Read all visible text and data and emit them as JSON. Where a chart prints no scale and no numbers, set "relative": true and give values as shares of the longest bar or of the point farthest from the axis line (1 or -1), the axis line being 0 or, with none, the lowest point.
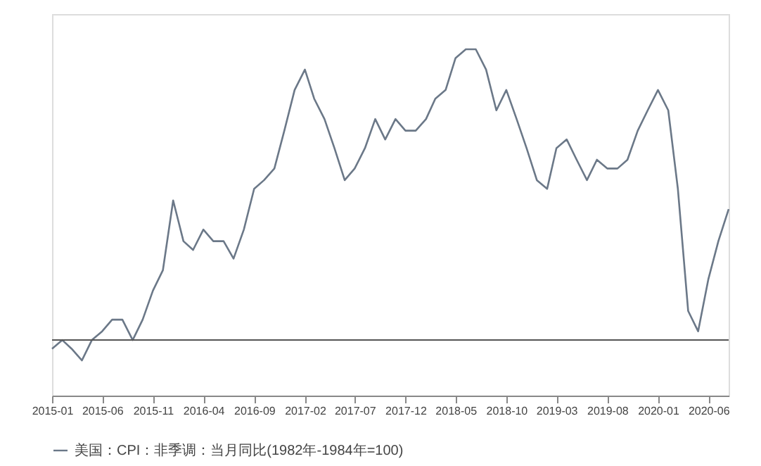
{
  "chart_data": {
    "type": "line",
    "relative": true,
    "x": [
      "2015-01",
      "2015-02",
      "2015-03",
      "2015-04",
      "2015-05",
      "2015-06",
      "2015-07",
      "2015-08",
      "2015-09",
      "2015-10",
      "2015-11",
      "2015-12",
      "2016-01",
      "2016-02",
      "2016-03",
      "2016-04",
      "2016-05",
      "2016-06",
      "2016-07",
      "2016-08",
      "2016-09",
      "2016-10",
      "2016-11",
      "2016-12",
      "2017-01",
      "2017-02",
      "2017-03",
      "2017-04",
      "2017-05",
      "2017-06",
      "2017-07",
      "2017-08",
      "2017-09",
      "2017-10",
      "2017-11",
      "2017-12",
      "2018-01",
      "2018-02",
      "2018-03",
      "2018-04",
      "2018-05",
      "2018-06",
      "2018-07",
      "2018-08",
      "2018-09",
      "2018-10",
      "2018-11",
      "2018-12",
      "2019-01",
      "2019-02",
      "2019-03",
      "2019-04",
      "2019-05",
      "2019-06",
      "2019-07",
      "2019-08",
      "2019-09",
      "2019-10",
      "2019-11",
      "2019-12",
      "2020-01",
      "2020-02",
      "2020-03",
      "2020-04",
      "2020-05",
      "2020-06",
      "2020-07",
      "2020-08"
    ],
    "xlim": [
      "2015-01",
      "2020-08"
    ],
    "xticks": [
      "2015-01",
      "2015-06",
      "2015-11",
      "2016-04",
      "2016-09",
      "2017-02",
      "2017-07",
      "2017-12",
      "2018-05",
      "2018-10",
      "2019-03",
      "2019-08",
      "2020-01",
      "2020-06"
    ],
    "series": [
      {
        "name": "美国：CPI：非季调：当月同比(1982年-1984年=100)",
        "color": "#6b7888",
        "values": [
          -0.03,
          0.0,
          -0.03,
          -0.07,
          0.0,
          0.03,
          0.07,
          0.07,
          0.0,
          0.07,
          0.17,
          0.24,
          0.48,
          0.34,
          0.31,
          0.38,
          0.34,
          0.34,
          0.28,
          0.38,
          0.52,
          0.55,
          0.59,
          0.72,
          0.86,
          0.93,
          0.83,
          0.76,
          0.66,
          0.55,
          0.59,
          0.66,
          0.76,
          0.69,
          0.76,
          0.72,
          0.72,
          0.76,
          0.83,
          0.86,
          0.97,
          1.0,
          1.0,
          0.93,
          0.79,
          0.86,
          0.76,
          0.66,
          0.55,
          0.52,
          0.66,
          0.69,
          0.62,
          0.55,
          0.62,
          0.59,
          0.59,
          0.62,
          0.72,
          0.79,
          0.86,
          0.79,
          0.52,
          0.1,
          0.03,
          0.21,
          0.34,
          0.45
        ]
      }
    ],
    "ref_lines": [
      {
        "axis": "y",
        "value": 0,
        "color": "#555555"
      }
    ],
    "legend": "bottom",
    "grid": false,
    "marker": "none",
    "line_style": "solid"
  }
}
